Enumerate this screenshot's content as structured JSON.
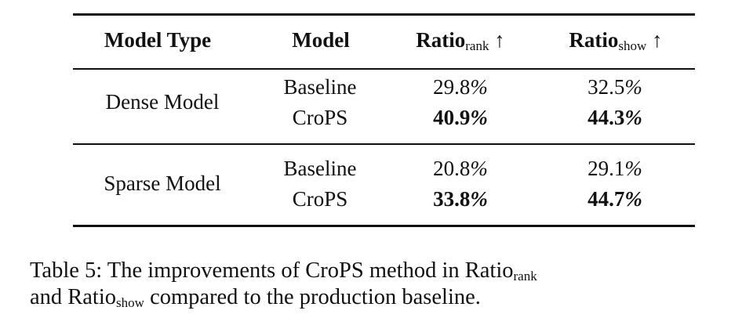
{
  "table": {
    "headers": [
      {
        "main": "Model Type",
        "sub": "",
        "arrow": ""
      },
      {
        "main": "Model",
        "sub": "",
        "arrow": ""
      },
      {
        "main": "Ratio",
        "sub": "rank",
        "arrow": "↑"
      },
      {
        "main": "Ratio",
        "sub": "show",
        "arrow": "↑"
      }
    ],
    "groups": [
      {
        "type": "Dense Model",
        "rows": [
          {
            "model": "Baseline",
            "rank": "29.8",
            "show": "32.5",
            "bold": false
          },
          {
            "model": "CroPS",
            "rank": "40.9",
            "show": "44.3",
            "bold": true
          }
        ]
      },
      {
        "type": "Sparse Model",
        "rows": [
          {
            "model": "Baseline",
            "rank": "20.8",
            "show": "29.1",
            "bold": false
          },
          {
            "model": "CroPS",
            "rank": "33.8",
            "show": "44.7",
            "bold": true
          }
        ]
      }
    ],
    "percent": "%"
  },
  "caption": {
    "line1_prefix": "Table 5: The improvements of CroPS method in Ratio",
    "line1_sub": "rank",
    "line2_prefix": "and Ratio",
    "line2_sub": "show",
    "line2_suffix": " compared to the production baseline."
  }
}
